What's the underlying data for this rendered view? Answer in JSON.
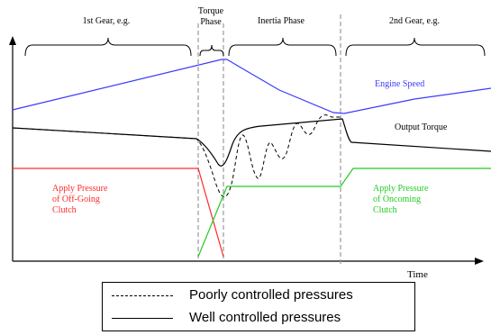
{
  "phases": {
    "first_gear": "1st Gear, e.g.",
    "torque_phase_line1": "Torque",
    "torque_phase_line2": "Phase",
    "inertia_phase": "Inertia Phase",
    "second_gear": "2nd Gear, e.g."
  },
  "curves": {
    "engine_speed": "Engine Speed",
    "output_torque": "Output Torque",
    "offgoing_line1": "Apply Pressure",
    "offgoing_line2": "of Off-Going",
    "offgoing_line3": "Clutch",
    "oncoming_line1": "Apply Pressure",
    "oncoming_line2": "of  Oncoming",
    "oncoming_line3": "Clutch"
  },
  "axis": {
    "x_label": "Time"
  },
  "legend": {
    "poorly": "Poorly controlled pressures",
    "well": "Well controlled pressures"
  },
  "colors": {
    "engine_speed": "#3b3bff",
    "offgoing": "#ff2a2a",
    "oncoming": "#22cc22",
    "torque": "#000000",
    "divider": "#999999"
  }
}
